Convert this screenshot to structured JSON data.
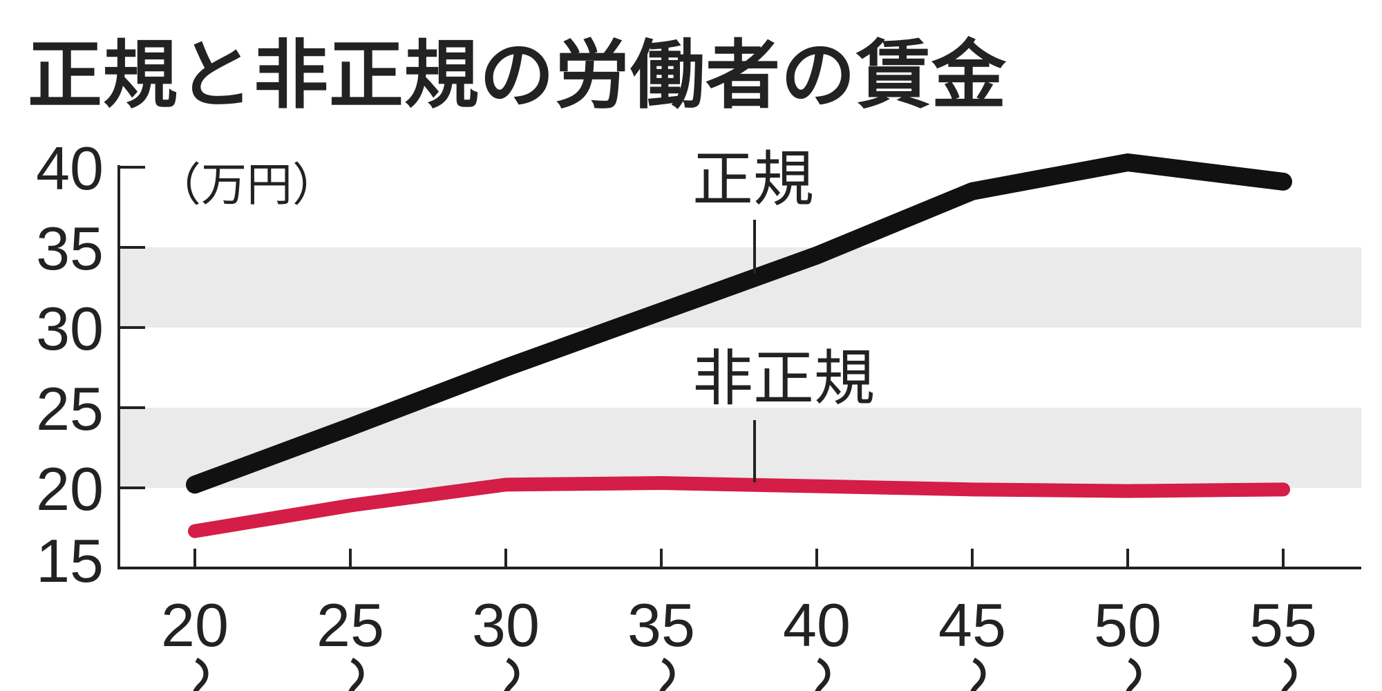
{
  "title": "正規と非正規の労働者の賃金",
  "chart_data": {
    "type": "line",
    "title": "正規と非正規の労働者の賃金",
    "ylabel": "（万円）",
    "ylim": [
      15,
      40
    ],
    "yticks": [
      15,
      20,
      25,
      30,
      35,
      40
    ],
    "x": [
      20,
      25,
      30,
      35,
      40,
      45,
      50,
      55
    ],
    "xtick_labels": [
      "20",
      "25",
      "30",
      "35",
      "40",
      "45",
      "50",
      "55"
    ],
    "x_range_mark": "〜",
    "shaded_bands": [
      [
        20,
        25
      ],
      [
        30,
        35
      ]
    ],
    "grid": false,
    "series": [
      {
        "name": "正規",
        "color": "#111111",
        "values": [
          20.2,
          23.8,
          27.5,
          31.0,
          34.5,
          38.5,
          40.3,
          39.1
        ]
      },
      {
        "name": "非正規",
        "color": "#d41d47",
        "values": [
          17.3,
          18.9,
          20.2,
          20.3,
          20.1,
          19.9,
          19.8,
          19.9
        ]
      }
    ]
  }
}
